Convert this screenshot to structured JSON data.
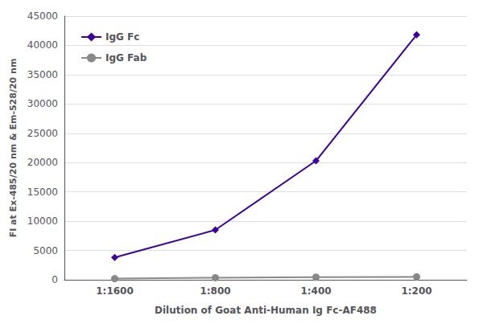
{
  "chart_data": {
    "type": "line",
    "xlabel": "Dilution of Goat Anti-Human Ig Fc-AF488",
    "ylabel": "FI at Ex-485/20 nm & Em-528/20 nm",
    "categories": [
      "1:1600",
      "1:800",
      "1:400",
      "1:200"
    ],
    "series": [
      {
        "name": "IgG Fc",
        "color": "#3d0099",
        "marker": "diamond",
        "values": [
          3800,
          8500,
          20300,
          41800
        ]
      },
      {
        "name": "IgG Fab",
        "color": "#888888",
        "marker": "circle",
        "values": [
          200,
          350,
          450,
          500
        ]
      }
    ],
    "ylim": [
      0,
      45000
    ],
    "yticks": [
      0,
      5000,
      10000,
      15000,
      20000,
      25000,
      30000,
      35000,
      40000,
      45000
    ],
    "grid": true,
    "legend": "upper left"
  }
}
